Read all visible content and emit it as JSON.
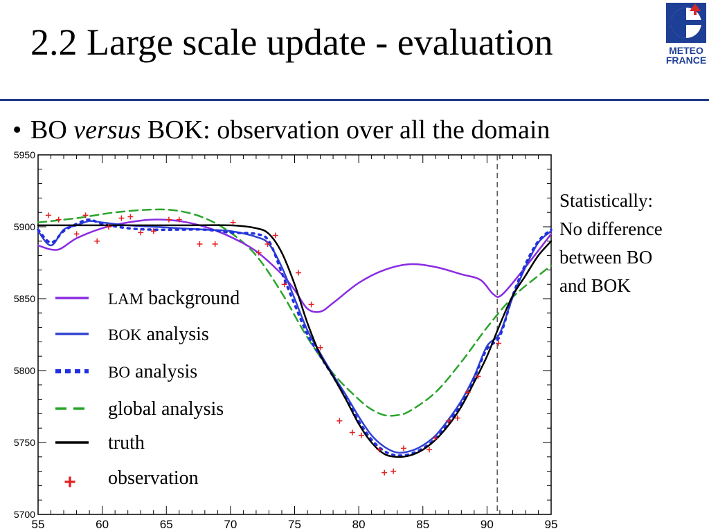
{
  "slide": {
    "title": "2.2 Large scale update - evaluation",
    "bullet_prefix": "BO ",
    "bullet_italic": "versus",
    "bullet_suffix": " BOK: observation over all the domain",
    "note_lines": [
      "Statistically:",
      "No difference",
      "between BO",
      "and BOK"
    ],
    "logo_line1": "METEO",
    "logo_line2": "FRANCE",
    "logo_colors": {
      "blue": "#1d3f95",
      "red": "#d62a2a"
    }
  },
  "chart_data": {
    "type": "line",
    "xlim": [
      55,
      95
    ],
    "ylim": [
      5700,
      5950
    ],
    "x_ticks": [
      55,
      60,
      65,
      70,
      75,
      80,
      85,
      90,
      95
    ],
    "y_ticks": [
      5700,
      5750,
      5800,
      5850,
      5900,
      5950
    ],
    "vline_x": 90.8,
    "series": [
      {
        "name_prefix": "LAM",
        "name_suffix": " background",
        "style": "solid",
        "color": "#8a2be2",
        "x": [
          55,
          56.5,
          58,
          60,
          62,
          64,
          66,
          68,
          70,
          72,
          74,
          75,
          76,
          77,
          78,
          80,
          82,
          84,
          86,
          88,
          89.5,
          90.5,
          91.2,
          93,
          95
        ],
        "y": [
          5887,
          5884,
          5892,
          5899,
          5903,
          5905,
          5904,
          5900,
          5893,
          5883,
          5867,
          5856,
          5843,
          5841,
          5847,
          5861,
          5870,
          5874,
          5872,
          5867,
          5863,
          5853,
          5853,
          5872,
          5895
        ]
      },
      {
        "name_prefix": "BOK",
        "name_suffix": " analysis",
        "style": "solid",
        "color": "#3040d0",
        "x": [
          55,
          56,
          57,
          58,
          59,
          60,
          62,
          64,
          66,
          68,
          70,
          72,
          73,
          74,
          75,
          76,
          77,
          78,
          79,
          80,
          81,
          82,
          83,
          84,
          85,
          86,
          87,
          88,
          89,
          90,
          91,
          92,
          93,
          94,
          95
        ],
        "y": [
          5897,
          5887,
          5898,
          5901,
          5904,
          5903,
          5901,
          5900,
          5899,
          5898,
          5897,
          5893,
          5888,
          5872,
          5850,
          5828,
          5812,
          5797,
          5783,
          5768,
          5755,
          5747,
          5743,
          5744,
          5748,
          5755,
          5766,
          5779,
          5796,
          5817,
          5826,
          5851,
          5872,
          5889,
          5897
        ]
      },
      {
        "name_prefix": "BO",
        "name_suffix": " analysis",
        "style": "dotted",
        "color": "#2030e0",
        "x": [
          55,
          56,
          57,
          58,
          59,
          60,
          62,
          64,
          66,
          68,
          70,
          72,
          73,
          74,
          75,
          76,
          77,
          78,
          79,
          80,
          81,
          82,
          83,
          84,
          85,
          86,
          87,
          88,
          89,
          90,
          91,
          92,
          93,
          94,
          95
        ],
        "y": [
          5898,
          5889,
          5897,
          5902,
          5905,
          5902,
          5899,
          5898,
          5898,
          5898,
          5896,
          5895,
          5890,
          5868,
          5846,
          5825,
          5810,
          5796,
          5781,
          5765,
          5752,
          5744,
          5741,
          5742,
          5746,
          5753,
          5764,
          5777,
          5795,
          5815,
          5824,
          5852,
          5874,
          5890,
          5898
        ]
      },
      {
        "name": "global analysis",
        "style": "dashed",
        "color": "#2aa52a",
        "x": [
          55,
          58,
          61,
          64,
          66,
          68,
          70,
          72,
          74,
          76,
          78,
          80,
          81,
          82,
          83,
          84,
          86,
          88,
          90,
          92,
          94,
          95
        ],
        "y": [
          5903,
          5906,
          5910,
          5912,
          5911,
          5906,
          5896,
          5880,
          5854,
          5823,
          5798,
          5780,
          5773,
          5769,
          5769,
          5772,
          5785,
          5806,
          5830,
          5851,
          5866,
          5873
        ]
      },
      {
        "name": "truth",
        "style": "solid",
        "color": "#000000",
        "x": [
          55,
          58,
          62,
          66,
          70,
          72,
          73,
          74,
          75,
          76,
          77,
          78,
          79,
          80,
          81,
          82,
          83,
          84,
          85,
          86,
          87,
          88,
          89,
          90,
          91,
          92,
          93,
          94,
          95
        ],
        "y": [
          5901,
          5901,
          5901,
          5901,
          5901,
          5899,
          5895,
          5882,
          5860,
          5833,
          5811,
          5796,
          5780,
          5763,
          5750,
          5742,
          5740,
          5741,
          5745,
          5752,
          5762,
          5775,
          5792,
          5810,
          5832,
          5852,
          5866,
          5880,
          5890
        ]
      },
      {
        "name": "observation",
        "style": "marker",
        "color": "#e02020",
        "x": [
          55.8,
          56.6,
          58,
          58.7,
          59.6,
          60.5,
          61.5,
          62.2,
          63,
          64,
          65.2,
          66,
          67.6,
          68.8,
          70.2,
          72.2,
          72.9,
          73.5,
          74.2,
          75.3,
          76.3,
          77,
          78.5,
          79.5,
          80.2,
          81.6,
          82,
          82.7,
          83.5,
          85.5,
          86,
          87,
          87.7,
          88.5,
          89.3,
          90.9
        ],
        "y": [
          5908,
          5905,
          5895,
          5908,
          5890,
          5900,
          5906,
          5907,
          5896,
          5897,
          5905,
          5905,
          5888,
          5888,
          5903,
          5882,
          5888,
          5894,
          5860,
          5868,
          5846,
          5816,
          5765,
          5757,
          5755,
          5745,
          5729,
          5730,
          5746,
          5745,
          5753,
          5765,
          5767,
          5785,
          5796,
          5819
        ]
      }
    ]
  }
}
